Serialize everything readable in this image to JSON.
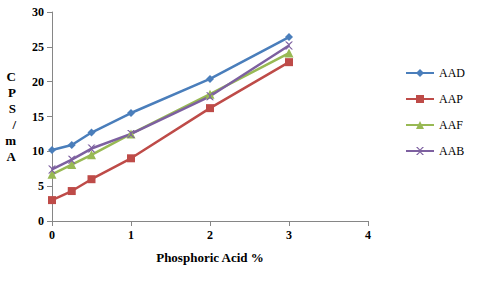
{
  "chart_data": {
    "type": "line",
    "x_label": "Phosphoric Acid %",
    "y_label": "CPS / mA",
    "x": [
      0,
      0.25,
      0.5,
      1,
      2,
      3
    ],
    "xlim": [
      0,
      4
    ],
    "xticks": [
      0,
      1,
      2,
      3,
      4
    ],
    "ylim": [
      0,
      30
    ],
    "yticks": [
      0,
      5,
      10,
      15,
      20,
      25,
      30
    ],
    "grid": false,
    "legend": "right",
    "series": [
      {
        "name": "AAD",
        "color": "#4a7ebb",
        "marker": "diamond",
        "values": [
          10.2,
          10.9,
          12.7,
          15.5,
          20.4,
          26.4
        ]
      },
      {
        "name": "AAP",
        "color": "#be4b48",
        "marker": "square",
        "values": [
          3.0,
          4.3,
          6.0,
          9.0,
          16.2,
          22.8
        ]
      },
      {
        "name": "AAF",
        "color": "#98b954",
        "marker": "triangle",
        "values": [
          6.7,
          8.1,
          9.5,
          12.5,
          18.2,
          24.1
        ]
      },
      {
        "name": "AAB",
        "color": "#7d60a0",
        "marker": "x",
        "values": [
          7.4,
          8.8,
          10.4,
          12.5,
          17.9,
          25.2
        ]
      }
    ]
  }
}
